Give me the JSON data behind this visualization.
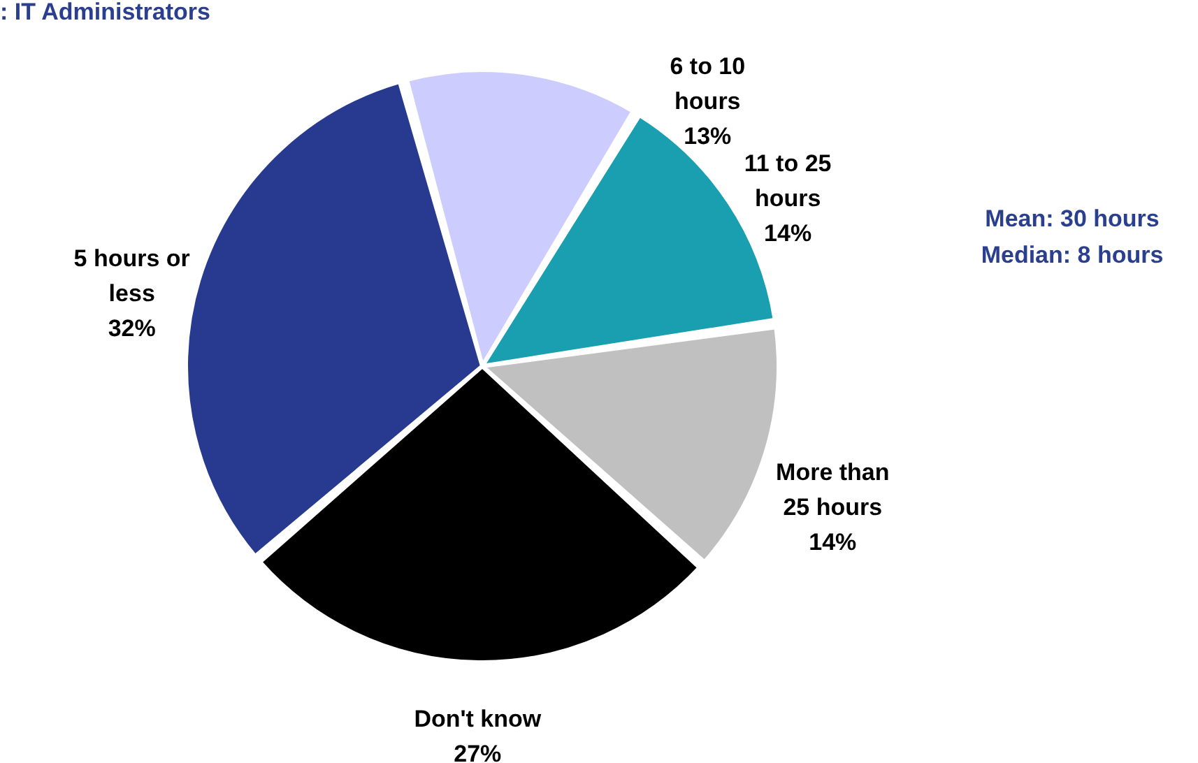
{
  "chart_data": {
    "type": "pie",
    "title": ": IT Administrators",
    "categories": [
      "6 to 10 hours",
      "11 to 25 hours",
      "More than 25 hours",
      "Don't know",
      "5 hours or less"
    ],
    "values": [
      13,
      14,
      14,
      27,
      32
    ],
    "colors": [
      "#ccccff",
      "#1a9fb0",
      "#c0c0c0",
      "#000000",
      "#283a8f"
    ],
    "value_labels": [
      "13%",
      "14%",
      "14%",
      "27%",
      "32%"
    ],
    "annotations": [
      "Mean: 30 hours",
      "Median: 8 hours"
    ]
  }
}
